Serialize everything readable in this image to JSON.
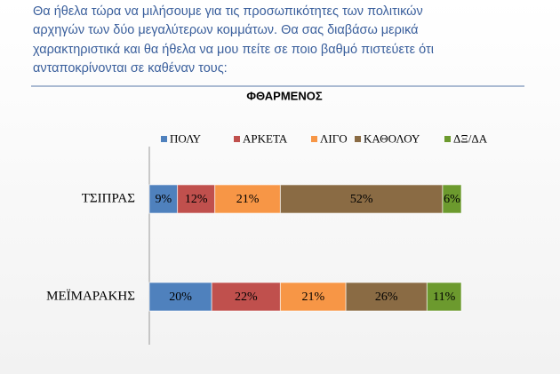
{
  "question": [
    "Θα ήθελα τώρα να μιλήσουμε για τις προσωπικότητες των πολιτικών",
    "αρχηγών των δύο μεγαλύτερων κομμάτων. Θα σας διαβάσω μερικά",
    "χαρακτηριστικά και θα ήθελα να μου πείτε σε ποιο βαθμό πιστεύετε ότι",
    "ανταποκρίνονται σε καθέναν τους:"
  ],
  "chart_data": {
    "type": "stacked-bar-horizontal",
    "title": "ΦΘΑΡΜΕΝΟΣ",
    "categories": [
      "ΤΣΙΠΡΑΣ",
      "ΜΕΪΜΑΡΑΚΗΣ"
    ],
    "xlim": [
      0,
      100
    ],
    "series": [
      {
        "name": "ΠΟΛΥ",
        "color": "#4f81bd",
        "values": [
          9,
          20
        ],
        "value_labels": [
          "9%",
          "20%"
        ]
      },
      {
        "name": "ΑΡΚΕΤΑ",
        "color": "#c0504d",
        "values": [
          12,
          22
        ],
        "value_labels": [
          "12%",
          "22%"
        ]
      },
      {
        "name": "ΛΙΓΟ",
        "color": "#f79646",
        "values": [
          21,
          21
        ],
        "value_labels": [
          "21%",
          "21%"
        ]
      },
      {
        "name": "ΚΑΘΟΛΟΥ",
        "color": "#8a6b44",
        "values": [
          52,
          26
        ],
        "value_labels": [
          "52%",
          "26%"
        ]
      },
      {
        "name": "ΔΞ/ΔΑ",
        "color": "#6c9a2e",
        "values": [
          6,
          11
        ],
        "value_labels": [
          "6%",
          "11%"
        ]
      }
    ],
    "legend": "top"
  }
}
